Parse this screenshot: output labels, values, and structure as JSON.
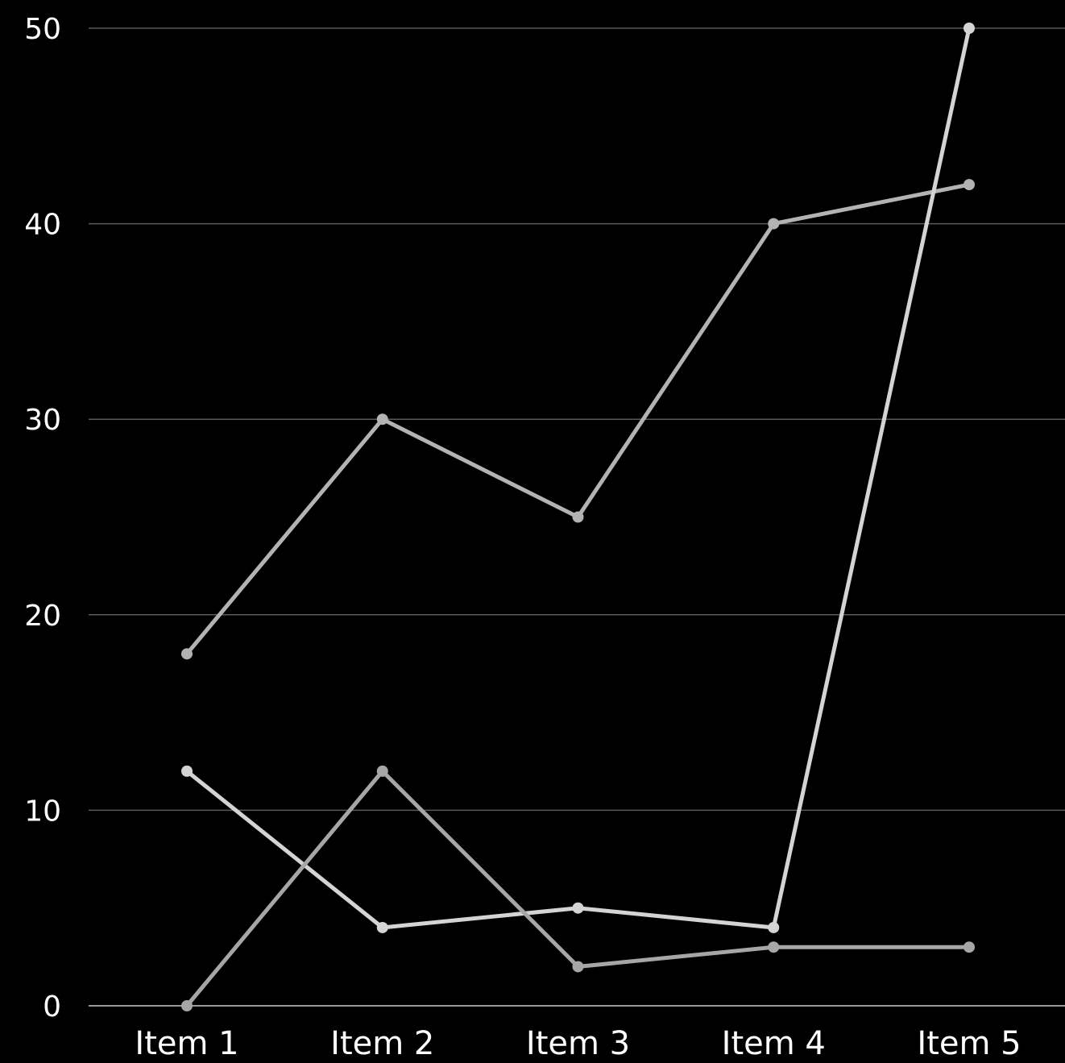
{
  "chart_data": {
    "type": "line",
    "title": "",
    "xlabel": "",
    "ylabel": "",
    "categories": [
      "Item 1",
      "Item 2",
      "Item 3",
      "Item 4",
      "Item 5"
    ],
    "ylim": [
      0,
      50
    ],
    "yticks": [
      "0",
      "10",
      "20",
      "30",
      "40",
      "50"
    ],
    "grid": true,
    "legend": "none",
    "series": [
      {
        "values": [
          18,
          30,
          25,
          40,
          42
        ],
        "color": "#b3b3b3"
      },
      {
        "values": [
          12,
          4,
          5,
          4,
          50
        ],
        "color": "#d4d4d4"
      },
      {
        "values": [
          0,
          12,
          2,
          3,
          3
        ],
        "color": "#a6a6a6"
      }
    ],
    "colors": {
      "background": "#000000",
      "text": "#ffffff",
      "grid": "#5a5a5a",
      "baseline": "#9a9a9a"
    }
  }
}
